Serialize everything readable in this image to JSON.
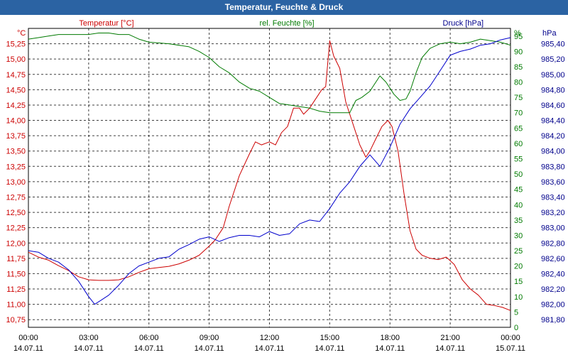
{
  "chart_data": {
    "type": "line",
    "title": "Temperatur, Feuchte & Druck",
    "x_ticks": [
      {
        "time": "00:00",
        "date": "14.07.11"
      },
      {
        "time": "03:00",
        "date": "14.07.11"
      },
      {
        "time": "06:00",
        "date": "14.07.11"
      },
      {
        "time": "09:00",
        "date": "14.07.11"
      },
      {
        "time": "12:00",
        "date": "14.07.11"
      },
      {
        "time": "15:00",
        "date": "14.07.11"
      },
      {
        "time": "18:00",
        "date": "14.07.11"
      },
      {
        "time": "21:00",
        "date": "14.07.11"
      },
      {
        "time": "00:00",
        "date": "15.07.11"
      }
    ],
    "xlim_hours": [
      0,
      24
    ],
    "axes": {
      "temperature": {
        "label": "Temperatur [°C]",
        "unit": "°C",
        "ylim": [
          10.625,
          15.5
        ],
        "ticks": [
          "10,75",
          "11,00",
          "11,25",
          "11,50",
          "11,75",
          "12,00",
          "12,25",
          "12,50",
          "12,75",
          "13,00",
          "13,25",
          "13,50",
          "13,75",
          "14,00",
          "14,25",
          "14,50",
          "14,75",
          "15,00",
          "15,25"
        ]
      },
      "humidity": {
        "label": "rel. Feuchte [%]",
        "unit": "%",
        "ylim": [
          0,
          97.5
        ],
        "ticks": [
          "0",
          "5",
          "10",
          "15",
          "20",
          "25",
          "30",
          "35",
          "40",
          "45",
          "50",
          "55",
          "60",
          "65",
          "70",
          "75",
          "80",
          "85",
          "90",
          "95"
        ]
      },
      "pressure": {
        "label": "Druck [hPa]",
        "unit": "hPa",
        "ylim": [
          981.7,
          985.6
        ],
        "ticks": [
          "981,80",
          "982,00",
          "982,20",
          "982,40",
          "982,60",
          "982,80",
          "983,00",
          "983,20",
          "983,40",
          "983,60",
          "983,80",
          "984,00",
          "984,20",
          "984,40",
          "984,60",
          "984,80",
          "985,00",
          "985,20",
          "985,40"
        ]
      }
    },
    "series": [
      {
        "name": "Temperatur",
        "axis": "temperature",
        "color": "#cc0000",
        "x": [
          0,
          0.5,
          1,
          1.5,
          2,
          2.5,
          3,
          3.5,
          4,
          4.5,
          5,
          5.5,
          6,
          6.5,
          7,
          7.5,
          8,
          8.5,
          9,
          9.3,
          9.7,
          10,
          10.5,
          11,
          11.3,
          11.6,
          12,
          12.3,
          12.6,
          12.9,
          13.2,
          13.5,
          13.7,
          14,
          14.3,
          14.6,
          14.8,
          15.0,
          15.2,
          15.5,
          15.8,
          16.2,
          16.5,
          16.8,
          17.0,
          17.3,
          17.6,
          17.9,
          18.1,
          18.4,
          18.7,
          19.0,
          19.3,
          19.6,
          20,
          20.4,
          20.8,
          21.2,
          21.6,
          22,
          22.4,
          22.8,
          23.2,
          23.6,
          24
        ],
        "values": [
          11.85,
          11.77,
          11.72,
          11.63,
          11.55,
          11.45,
          11.4,
          11.39,
          11.39,
          11.4,
          11.45,
          11.52,
          11.58,
          11.6,
          11.62,
          11.66,
          11.72,
          11.8,
          11.95,
          12.05,
          12.25,
          12.6,
          13.1,
          13.45,
          13.65,
          13.6,
          13.65,
          13.6,
          13.8,
          13.9,
          14.2,
          14.2,
          14.1,
          14.2,
          14.35,
          14.5,
          14.55,
          15.3,
          15.05,
          14.85,
          14.3,
          13.9,
          13.6,
          13.4,
          13.5,
          13.7,
          13.9,
          14.0,
          13.9,
          13.5,
          12.8,
          12.2,
          11.9,
          11.8,
          11.75,
          11.73,
          11.77,
          11.65,
          11.4,
          11.25,
          11.15,
          11.0,
          10.98,
          10.95,
          10.9
        ]
      },
      {
        "name": "rel. Feuchte",
        "axis": "humidity",
        "color": "#007a00",
        "x": [
          0,
          0.5,
          1,
          1.5,
          2,
          2.5,
          3,
          3.5,
          4,
          4.5,
          5,
          5.5,
          6,
          7,
          8,
          8.5,
          9,
          9.5,
          10,
          10.5,
          11,
          11.5,
          12,
          12.5,
          13,
          13.5,
          14,
          14.5,
          15,
          15.5,
          16,
          16.3,
          16.6,
          17,
          17.2,
          17.5,
          17.8,
          18.2,
          18.5,
          18.8,
          19,
          19.3,
          19.6,
          20,
          20.5,
          21,
          21.5,
          22,
          22.5,
          23,
          23.5,
          24
        ],
        "values": [
          94,
          94.5,
          95,
          95.5,
          95.5,
          95.5,
          95.5,
          96,
          96,
          95.5,
          95.5,
          94,
          93,
          92.5,
          91.5,
          90,
          88,
          85,
          83,
          80,
          78,
          77,
          75,
          73,
          72.5,
          72,
          71.5,
          70.5,
          70,
          70,
          70,
          74,
          75,
          77,
          79,
          82,
          80,
          76,
          74,
          74.5,
          77,
          83,
          88,
          91,
          92.5,
          93,
          92.5,
          93,
          94,
          93.5,
          93,
          92
        ]
      },
      {
        "name": "Druck",
        "axis": "pressure",
        "color": "#0000cc",
        "x": [
          0,
          0.5,
          1,
          1.5,
          2,
          2.5,
          3,
          3.3,
          3.6,
          4,
          4.5,
          5,
          5.5,
          6,
          6.5,
          7,
          7.5,
          8,
          8.5,
          9,
          9.5,
          10,
          10.5,
          11,
          11.5,
          12,
          12.5,
          13,
          13.5,
          14,
          14.5,
          15,
          15.5,
          16,
          16.5,
          17,
          17.5,
          18,
          18.5,
          19,
          19.5,
          20,
          20.5,
          21,
          21.5,
          22,
          22.5,
          23,
          23.5,
          24
        ],
        "values": [
          982.7,
          982.68,
          982.6,
          982.55,
          982.45,
          982.3,
          982.1,
          982.0,
          982.05,
          982.12,
          982.25,
          982.4,
          982.5,
          982.55,
          982.6,
          982.62,
          982.72,
          982.78,
          982.85,
          982.88,
          982.82,
          982.87,
          982.9,
          982.9,
          982.88,
          982.95,
          982.9,
          982.92,
          983.05,
          983.1,
          983.08,
          983.25,
          983.45,
          983.6,
          983.8,
          983.95,
          983.8,
          984.05,
          984.35,
          984.55,
          984.7,
          984.85,
          985.05,
          985.25,
          985.3,
          985.33,
          985.38,
          985.4,
          985.45,
          985.48
        ]
      }
    ]
  }
}
